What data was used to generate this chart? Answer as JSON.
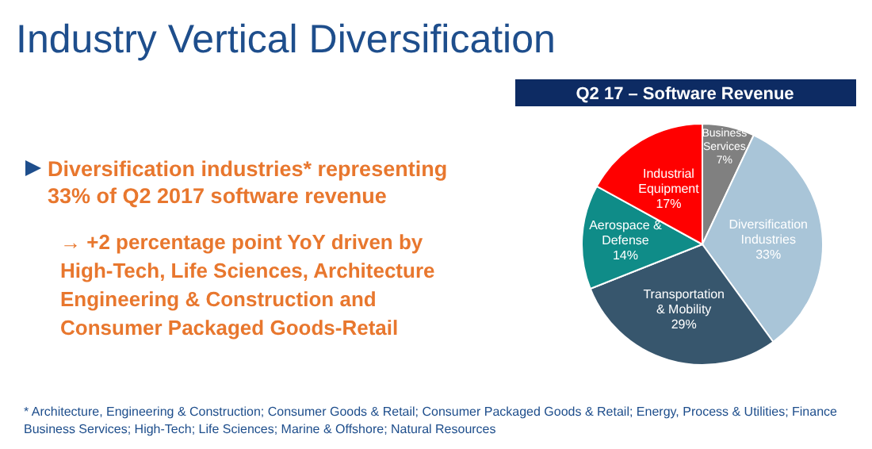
{
  "chart_data": {
    "type": "pie",
    "title": "Industry Vertical Diversification",
    "subtitle": "Q2 17 – Software Revenue",
    "categories": [
      "Business Services",
      "Diversification Industries",
      "Transportation & Mobility",
      "Aerospace & Defense",
      "Industrial Equipment"
    ],
    "values": [
      7,
      33,
      29,
      14,
      17
    ],
    "colors": [
      "#808080",
      "#a9c5d8",
      "#37566d",
      "#0f8c88",
      "#ff0000"
    ],
    "value_labels": [
      "7%",
      "33%",
      "29%",
      "14%",
      "17%"
    ],
    "annotations": [
      "Diversification industries* representing 33% of Q2 2017 software revenue",
      "→ +2 percentage point YoY driven by High-Tech, Life Sciences, Architecture Engineering & Construction and Consumer Packaged Goods-Retail",
      "* Architecture, Engineering & Construction; Consumer Goods & Retail; Consumer Packaged Goods & Retail; Energy, Process & Utilities; Finance Business Services; High-Tech; Life Sciences; Marine & Offshore; Natural Resources"
    ]
  }
}
